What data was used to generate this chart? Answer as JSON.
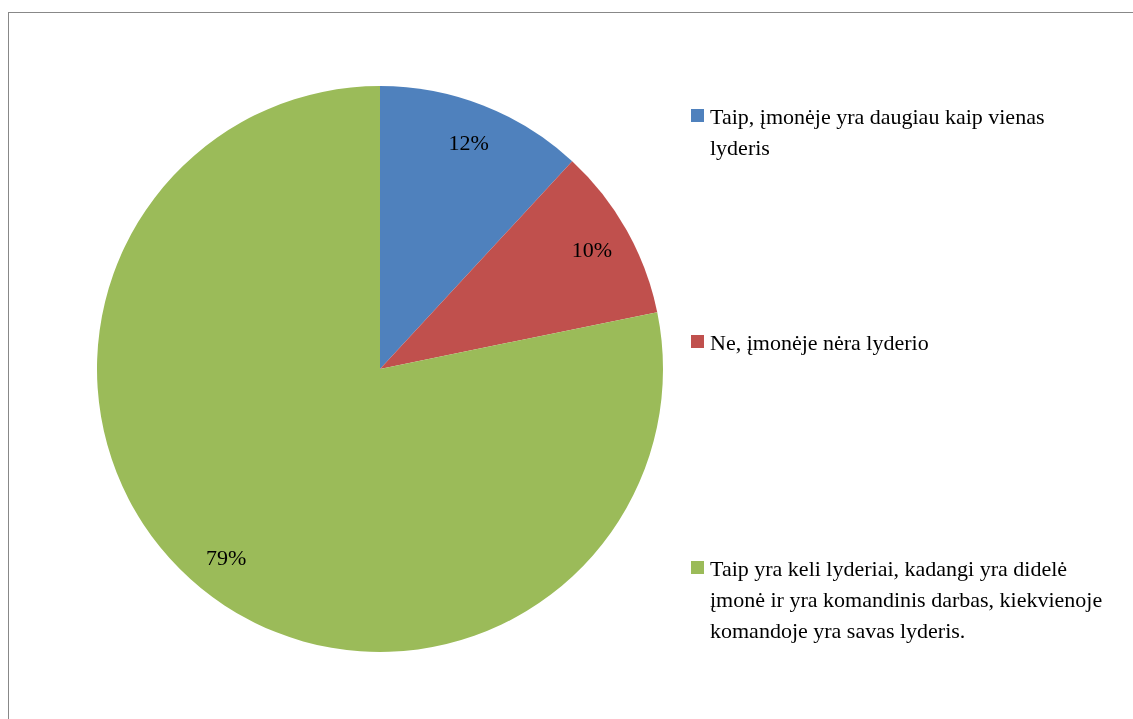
{
  "chart_data": {
    "type": "pie",
    "categories": [
      "Taip, įmonėje yra daugiau kaip vienas lyderis",
      "Ne, įmonėje nėra lyderio",
      "Taip yra keli lyderiai, kadangi yra didelė įmonė ir yra komandinis darbas, kiekvienoje komandoje yra savas lyderis."
    ],
    "values": [
      12,
      10,
      79
    ],
    "colors": [
      "#4f81bd",
      "#c0504d",
      "#9bbb59"
    ],
    "value_labels": [
      "12%",
      "10%",
      "79%"
    ],
    "legend": "right"
  }
}
